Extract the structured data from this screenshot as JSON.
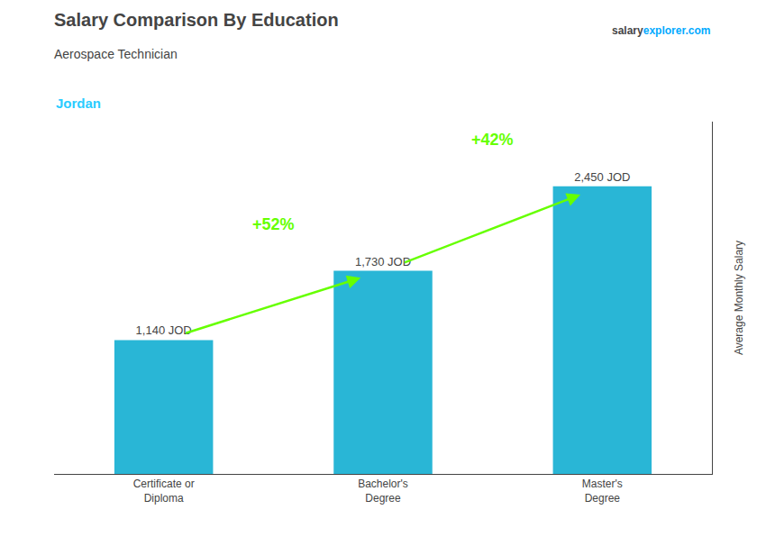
{
  "chart_data": {
    "type": "bar",
    "title": "Salary Comparison By Education",
    "subtitle": "Aerospace Technician",
    "country": {
      "text": "Jordan",
      "color": "#29ccff"
    },
    "watermark": [
      {
        "text": "salary"
      },
      {
        "text": "explorer",
        "color": "#00aaff"
      },
      {
        "text": ".com",
        "color": "#00aaff"
      }
    ],
    "ylabel": "Average Monthly Salary",
    "categories": [
      "Certificate or\nDiploma",
      "Bachelor's\nDegree",
      "Master's\nDegree"
    ],
    "values": [
      1140,
      1730,
      2450
    ],
    "value_labels": [
      "1,140 JOD",
      "1,730 JOD",
      "2,450 JOD"
    ],
    "data_labels": true,
    "color": "#29b6d6",
    "annotations": [
      {
        "text": "+52%",
        "from": 0,
        "to": 1,
        "color": "#66ff00"
      },
      {
        "text": "+42%",
        "from": 1,
        "to": 2,
        "color": "#66ff00"
      }
    ],
    "ylim": [
      0,
      3000
    ],
    "grid": false,
    "tick_labels": "x"
  }
}
